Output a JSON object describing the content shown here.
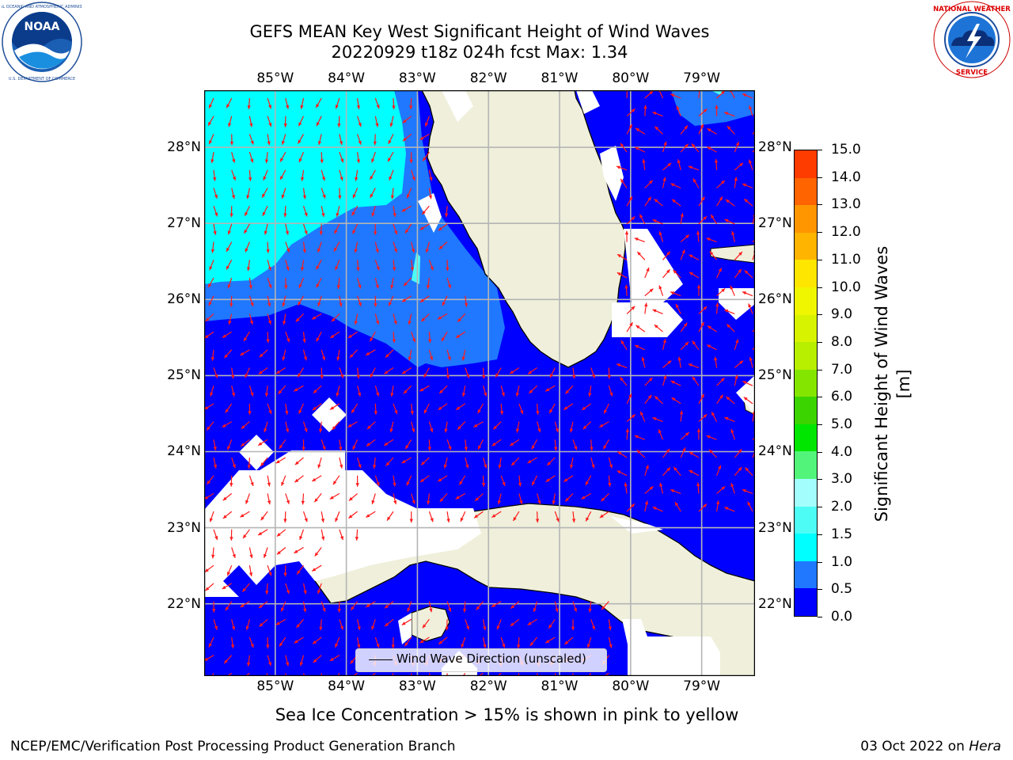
{
  "title": {
    "line1": "GEFS MEAN Key West Significant Height of Wind Waves",
    "line2": "20220929 t18z 024h fcst   Max: 1.34"
  },
  "map": {
    "lon_labels": [
      "85°W",
      "84°W",
      "83°W",
      "82°W",
      "81°W",
      "80°W",
      "79°W"
    ],
    "lat_labels": [
      "28°N",
      "27°N",
      "26°N",
      "25°N",
      "24°N",
      "23°N",
      "22°N"
    ],
    "lon_range": [
      -86,
      -78.25
    ],
    "lat_range": [
      21.05,
      28.75
    ],
    "land_color": "#efefdb",
    "grid_color": "#b5b5b5",
    "arrow_color": "#ff0000",
    "wave_field_levels": [
      {
        "range": "0.0-0.5",
        "color": "#0000ff"
      },
      {
        "range": "0.5-1.0",
        "color": "#1f78ff"
      },
      {
        "range": "1.0-1.5",
        "color": "#00ffff"
      },
      {
        "range": "1.5-2.0",
        "color": "#4dfdf5"
      }
    ]
  },
  "legend": {
    "label": "Wind Wave Direction (unscaled)"
  },
  "colorbar": {
    "title": "Significant Height of Wind Waves [m]",
    "levels": [
      {
        "value": "0.0",
        "color": "#0000ff"
      },
      {
        "value": "0.5",
        "color": "#1f78ff"
      },
      {
        "value": "1.0",
        "color": "#00ffff"
      },
      {
        "value": "1.5",
        "color": "#4dfdf5"
      },
      {
        "value": "2.0",
        "color": "#a4fdfd"
      },
      {
        "value": "2.5",
        "color": "#a4fdfd"
      },
      {
        "value": "3.0",
        "color": "#52f57a"
      },
      {
        "value": "3.5",
        "color": "#52f57a"
      },
      {
        "value": "4.0",
        "color": "#00e600"
      },
      {
        "value": "4.5",
        "color": "#00e600"
      },
      {
        "value": "5.0",
        "color": "#3cd400"
      },
      {
        "value": "5.5",
        "color": "#3cd400"
      },
      {
        "value": "6.0",
        "color": "#84e600"
      },
      {
        "value": "6.5",
        "color": "#84e600"
      },
      {
        "value": "7.0",
        "color": "#b8ee00"
      },
      {
        "value": "7.5",
        "color": "#b8ee00"
      },
      {
        "value": "8.0",
        "color": "#d8f300"
      },
      {
        "value": "8.5",
        "color": "#d8f300"
      },
      {
        "value": "9.0",
        "color": "#f0f600"
      },
      {
        "value": "9.5",
        "color": "#f0f600"
      },
      {
        "value": "10.0",
        "color": "#ffe600"
      },
      {
        "value": "10.5",
        "color": "#ffe600"
      },
      {
        "value": "11.0",
        "color": "#ffb400"
      },
      {
        "value": "11.5",
        "color": "#ffb400"
      },
      {
        "value": "12.0",
        "color": "#ff9600"
      },
      {
        "value": "12.5",
        "color": "#ff9600"
      },
      {
        "value": "13.0",
        "color": "#ff6400"
      },
      {
        "value": "13.5",
        "color": "#ff6400"
      },
      {
        "value": "14.0",
        "color": "#ff3c00"
      },
      {
        "value": "14.5",
        "color": "#ff0000"
      },
      {
        "value": "15.0",
        "color": "#ff0000"
      }
    ],
    "tick_labels": [
      "0.0",
      "0.5",
      "1.0",
      "1.5",
      "2.0",
      "3.0",
      "4.0",
      "5.0",
      "6.0",
      "7.0",
      "8.0",
      "9.0",
      "10.0",
      "11.0",
      "12.0",
      "13.0",
      "14.0",
      "15.0"
    ]
  },
  "notes": {
    "sea_ice": "Sea Ice Concentration > 15% is shown in pink to yellow"
  },
  "footer": {
    "left": "NCEP/EMC/Verification Post Processing Product Generation Branch",
    "right_date": "03 Oct 2022 on ",
    "right_host": "Hera"
  },
  "logos": {
    "noaa": {
      "text": "NOAA",
      "ring_text": "NATIONAL OCEANIC AND ATMOSPHERIC ADMINISTRATION · U.S. DEPARTMENT OF COMMERCE",
      "icon": "noaa-logo"
    },
    "nws": {
      "ring_text": "NATIONAL WEATHER SERVICE",
      "icon": "nws-logo"
    }
  }
}
